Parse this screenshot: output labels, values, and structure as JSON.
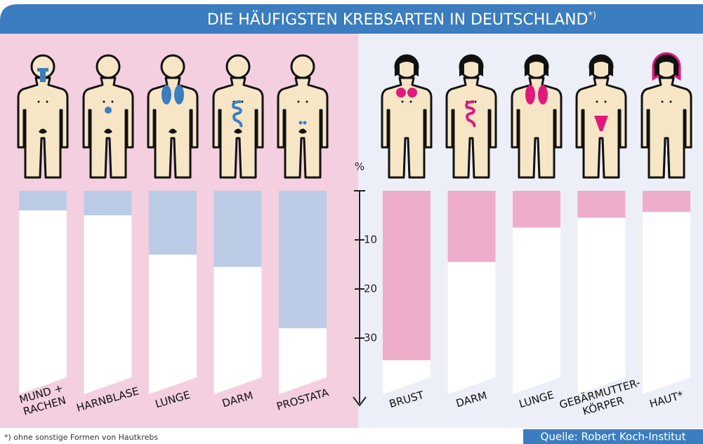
{
  "chart_data": {
    "type": "bar",
    "title": "DIE HÄUFIGSTEN KREBSARTEN IN DEUTSCHLAND",
    "title_mark": "*)",
    "y_label": "%",
    "ylim": [
      0,
      43
    ],
    "yticks": [
      10,
      20,
      30
    ],
    "groups": [
      {
        "color": "#bccbe6",
        "categories": [
          "MUND +\nRACHEN",
          "HARNBLASE",
          "LUNGE",
          "DARM",
          "PROSTATA"
        ],
        "values": [
          4,
          5,
          13,
          15.5,
          28
        ]
      },
      {
        "color": "#eeaecb",
        "categories": [
          "BRUST",
          "DARM",
          "LUNGE",
          "GEBÄRMUTTER-\nKÖRPER",
          "HAUT*"
        ],
        "values": [
          34.5,
          14.5,
          7.5,
          5.5,
          4.3
        ]
      }
    ],
    "footnote": "*) ohne sonstige Formen von Hautkrebs",
    "source": "Quelle: Robert Koch-Institut"
  }
}
